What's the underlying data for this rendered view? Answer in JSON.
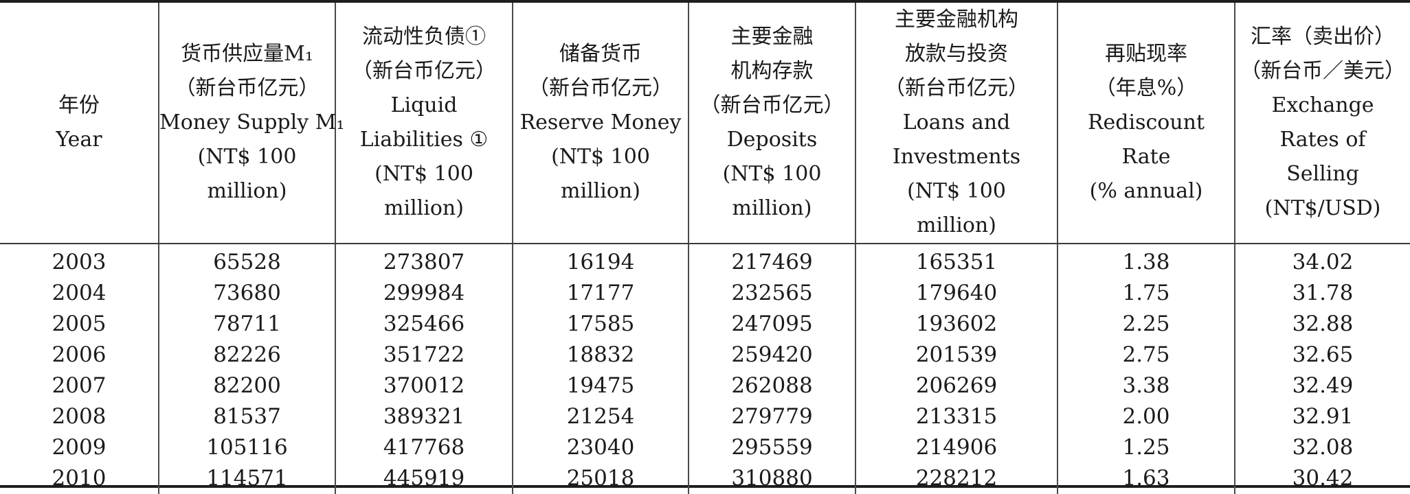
{
  "table": {
    "headers": [
      {
        "lines": [
          "年份",
          "Year"
        ]
      },
      {
        "lines": [
          "货币供应量M₁",
          "（新台币亿元）",
          "Money Supply M₁",
          "(NT$ 100",
          "million)"
        ]
      },
      {
        "lines": [
          "流动性负债①",
          "（新台币亿元）",
          "Liquid",
          "Liabilities ①",
          "(NT$ 100",
          "million)"
        ]
      },
      {
        "lines": [
          "储备货币",
          "（新台币亿元）",
          "Reserve Money",
          "(NT$ 100",
          "million)"
        ]
      },
      {
        "lines": [
          "主要金融",
          "机构存款",
          "（新台币亿元）",
          "Deposits",
          "(NT$ 100",
          "million)"
        ]
      },
      {
        "lines": [
          "主要金融机构",
          "放款与投资",
          "（新台币亿元）",
          "Loans and",
          "Investments",
          "(NT$ 100",
          "million)"
        ]
      },
      {
        "lines": [
          "再贴现率",
          "（年息%）",
          "Rediscount",
          "Rate",
          "(% annual)"
        ]
      },
      {
        "lines": [
          "汇率（卖出价）",
          "（新台币／美元）",
          "Exchange",
          "Rates of",
          "Selling",
          "(NT$/USD)"
        ]
      }
    ],
    "rows": [
      [
        "2003",
        "65528",
        "273807",
        "16194",
        "217469",
        "165351",
        "1.38",
        "34.02"
      ],
      [
        "2004",
        "73680",
        "299984",
        "17177",
        "232565",
        "179640",
        "1.75",
        "31.78"
      ],
      [
        "2005",
        "78711",
        "325466",
        "17585",
        "247095",
        "193602",
        "2.25",
        "32.88"
      ],
      [
        "2006",
        "82226",
        "351722",
        "18832",
        "259420",
        "201539",
        "2.75",
        "32.65"
      ],
      [
        "2007",
        "82200",
        "370012",
        "19475",
        "262088",
        "206269",
        "3.38",
        "32.49"
      ],
      [
        "2008",
        "81537",
        "389321",
        "21254",
        "279779",
        "213315",
        "2.00",
        "32.91"
      ],
      [
        "2009",
        "105116",
        "417768",
        "23040",
        "295559",
        "214906",
        "1.25",
        "32.08"
      ],
      [
        "2010",
        "114571",
        "445919",
        "25018",
        "310880",
        "228212",
        "1.63",
        "30.42"
      ]
    ]
  }
}
